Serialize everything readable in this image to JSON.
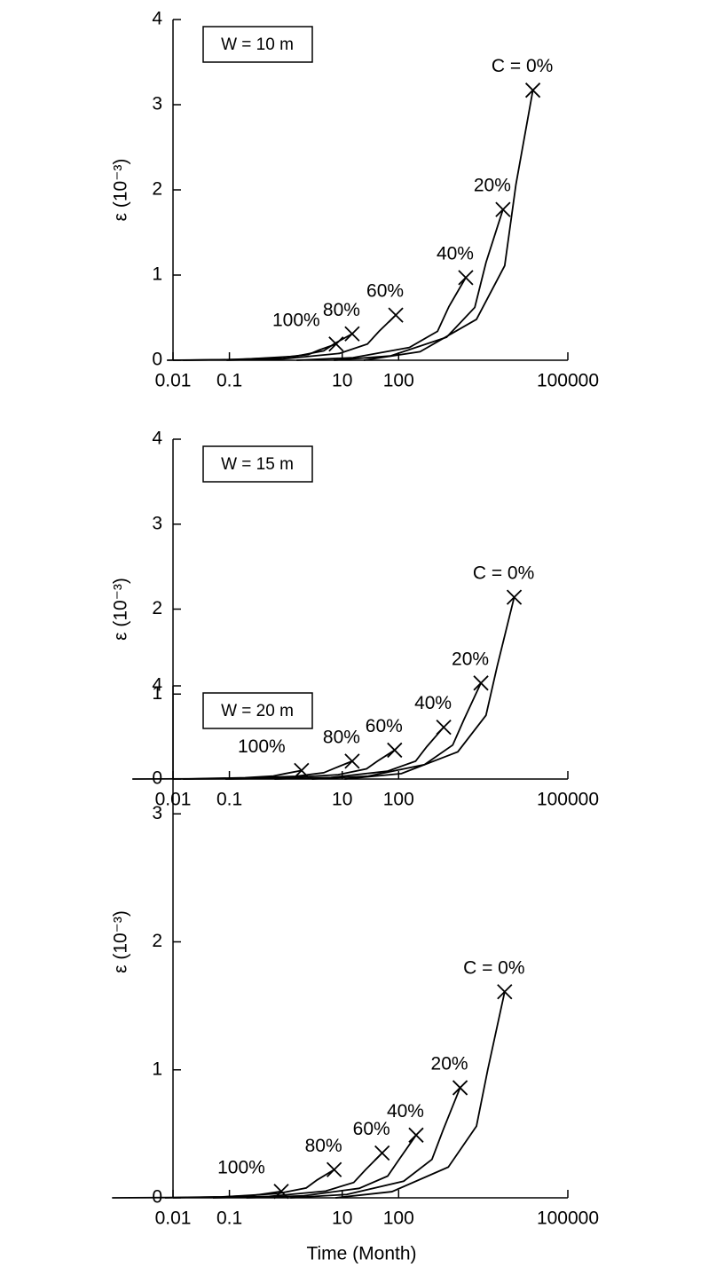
{
  "chart_data": [
    {
      "type": "line",
      "annotation": "W = 10 m",
      "y_label": "ε (10⁻³)",
      "log_x": true,
      "xlim": [
        0.01,
        100000
      ],
      "xticks": [
        0.01,
        0.1,
        10,
        100,
        100000
      ],
      "ylim": [
        0,
        4
      ],
      "yticks": [
        0,
        1,
        2,
        3,
        4
      ],
      "series": [
        {
          "name": "100%",
          "color": "#000000",
          "x": [
            0.0078,
            0.078,
            0.78,
            2.5,
            3.9,
            7.8
          ],
          "values": [
            0,
            0.006,
            0.029,
            0.067,
            0.12,
            0.19
          ]
        },
        {
          "name": "80%",
          "color": "#000000",
          "x": [
            0.015,
            0.15,
            1.5,
            4.7,
            7.5,
            15
          ],
          "values": [
            0,
            0.009,
            0.047,
            0.11,
            0.2,
            0.31
          ]
        },
        {
          "name": "60%",
          "color": "#000000",
          "x": [
            0.089,
            0.89,
            8.9,
            28,
            45,
            89
          ],
          "values": [
            0,
            0.016,
            0.08,
            0.19,
            0.34,
            0.53
          ]
        },
        {
          "name": "40%",
          "color": "#000000",
          "x": [
            1.55,
            15.5,
            155,
            490,
            780,
            1550
          ],
          "values": [
            0,
            0.03,
            0.15,
            0.34,
            0.63,
            0.97
          ]
        },
        {
          "name": "20%",
          "color": "#000000",
          "x": [
            7.1,
            71,
            708,
            2240,
            3550,
            7080
          ],
          "values": [
            0,
            0.05,
            0.27,
            0.62,
            1.15,
            1.77
          ]
        },
        {
          "name": "C = 0%",
          "color": "#000000",
          "x": [
            24,
            240,
            2400,
            7600,
            12000,
            24000
          ],
          "values": [
            0,
            0.1,
            0.48,
            1.11,
            2.06,
            3.17
          ]
        }
      ]
    },
    {
      "type": "line",
      "annotation": "W = 15 m",
      "y_label": "ε (10⁻³)",
      "log_x": true,
      "xlim": [
        0.01,
        100000
      ],
      "xticks": [
        0.01,
        0.1,
        10,
        100,
        100000
      ],
      "ylim": [
        0,
        4
      ],
      "yticks": [
        0,
        1,
        2,
        3,
        4
      ],
      "series": [
        {
          "name": "100%",
          "color": "#000000",
          "x": [
            0.0019,
            0.019,
            0.19,
            0.6,
            0.95,
            1.9
          ],
          "values": [
            0,
            0.003,
            0.015,
            0.035,
            0.062,
            0.1
          ]
        },
        {
          "name": "80%",
          "color": "#000000",
          "x": [
            0.015,
            0.15,
            1.5,
            4.7,
            7.5,
            15
          ],
          "values": [
            0,
            0.006,
            0.032,
            0.074,
            0.13,
            0.21
          ]
        },
        {
          "name": "60%",
          "color": "#000000",
          "x": [
            0.085,
            0.85,
            8.5,
            27,
            42,
            85
          ],
          "values": [
            0,
            0.01,
            0.051,
            0.12,
            0.21,
            0.34
          ]
        },
        {
          "name": "40%",
          "color": "#000000",
          "x": [
            0.63,
            6.3,
            63,
            200,
            315,
            630
          ],
          "values": [
            0,
            0.018,
            0.092,
            0.21,
            0.38,
            0.61
          ]
        },
        {
          "name": "20%",
          "color": "#000000",
          "x": [
            2.9,
            29,
            288,
            910,
            1440,
            2880
          ],
          "values": [
            0,
            0.034,
            0.17,
            0.4,
            0.7,
            1.13
          ]
        },
        {
          "name": "C = 0%",
          "color": "#000000",
          "x": [
            11,
            112,
            1120,
            3540,
            5600,
            11200
          ],
          "values": [
            0,
            0.064,
            0.32,
            0.75,
            1.33,
            2.14
          ]
        }
      ]
    },
    {
      "type": "line",
      "annotation": "W = 20 m",
      "y_label": "ε (10⁻³)",
      "x_label": "Time (Month)",
      "log_x": true,
      "xlim": [
        0.01,
        100000
      ],
      "xticks": [
        0.01,
        0.1,
        10,
        100,
        100000
      ],
      "ylim": [
        0,
        4
      ],
      "yticks": [
        0,
        1,
        2,
        3,
        4
      ],
      "series": [
        {
          "name": "100%",
          "color": "#000000",
          "x": [
            0.00083,
            0.0083,
            0.083,
            0.26,
            0.42,
            0.83
          ],
          "values": [
            0,
            0.002,
            0.008,
            0.018,
            0.031,
            0.05
          ]
        },
        {
          "name": "80%",
          "color": "#000000",
          "x": [
            0.0072,
            0.072,
            0.72,
            2.3,
            3.6,
            7.2
          ],
          "values": [
            0,
            0.007,
            0.033,
            0.077,
            0.14,
            0.22
          ]
        },
        {
          "name": "60%",
          "color": "#000000",
          "x": [
            0.051,
            0.51,
            5.1,
            16,
            26,
            51
          ],
          "values": [
            0,
            0.011,
            0.053,
            0.12,
            0.22,
            0.35
          ]
        },
        {
          "name": "40%",
          "color": "#000000",
          "x": [
            0.2,
            2,
            20,
            64,
            102,
            204
          ],
          "values": [
            0,
            0.015,
            0.074,
            0.17,
            0.3,
            0.49
          ]
        },
        {
          "name": "20%",
          "color": "#000000",
          "x": [
            1.2,
            12,
            123,
            390,
            615,
            1230
          ],
          "values": [
            0,
            0.026,
            0.13,
            0.3,
            0.53,
            0.86
          ]
        },
        {
          "name": "C = 0%",
          "color": "#000000",
          "x": [
            7.6,
            76,
            760,
            2400,
            3800,
            7590
          ],
          "values": [
            0,
            0.048,
            0.24,
            0.56,
            1,
            1.61
          ]
        }
      ]
    }
  ]
}
